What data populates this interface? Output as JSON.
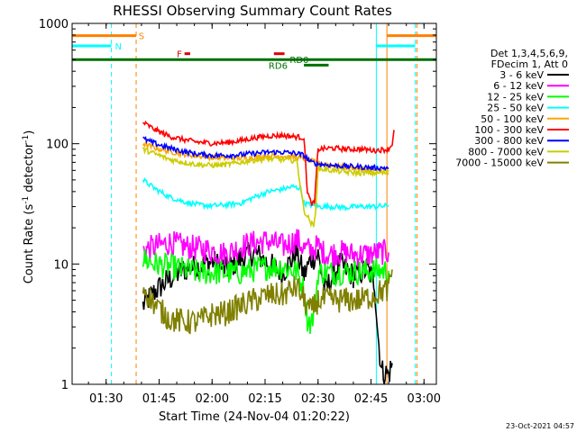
{
  "chart_data": {
    "type": "line",
    "title": "RHESSI Observing Summary Count Rates",
    "xlabel": "Start Time (24-Nov-04 01:20:22)",
    "ylabel": "Count Rate (s",
    "ylabel_sup": "-1",
    "ylabel_tail": " detector",
    "ylabel_tail_sup": "-1",
    "ylabel_end": ")",
    "yscale": "log",
    "ylim": [
      1,
      1000
    ],
    "xlim_minutes": [
      20.37,
      123.5
    ],
    "x_ticks": [
      {
        "label": "01:30",
        "minute": 30
      },
      {
        "label": "01:45",
        "minute": 45
      },
      {
        "label": "02:00",
        "minute": 60
      },
      {
        "label": "02:15",
        "minute": 75
      },
      {
        "label": "02:30",
        "minute": 90
      },
      {
        "label": "02:45",
        "minute": 105
      },
      {
        "label": "03:00",
        "minute": 120
      }
    ],
    "y_ticks": [
      {
        "label": "1",
        "value": 1
      },
      {
        "label": "10",
        "value": 10
      },
      {
        "label": "100",
        "value": 100
      },
      {
        "label": "1000",
        "value": 1000
      }
    ],
    "legend_header": [
      "Det 1,3,4,5,6,9,",
      "FDecim 1, Att 0"
    ],
    "series": [
      {
        "name": "3 - 6 keV",
        "color": "#000000",
        "segments": [
          [
            [
              40.4,
              4.5
            ],
            [
              44,
              6
            ],
            [
              48,
              7.5
            ],
            [
              52,
              9
            ],
            [
              56,
              9.5
            ],
            [
              60,
              10.5
            ],
            [
              64,
              9
            ],
            [
              68,
              11
            ],
            [
              72,
              12.5
            ],
            [
              76,
              10
            ],
            [
              80,
              8.5
            ],
            [
              84,
              12.5
            ],
            [
              86,
              8
            ],
            [
              88,
              11
            ],
            [
              90,
              12
            ],
            [
              92,
              6
            ],
            [
              96,
              10
            ],
            [
              100,
              8
            ],
            [
              104,
              9
            ],
            [
              106,
              7
            ],
            [
              107,
              2.5
            ],
            [
              108,
              1.3
            ],
            [
              110,
              1.2
            ],
            [
              111,
              1.5
            ]
          ]
        ]
      },
      {
        "name": "6 - 12 keV",
        "color": "#ff00ff",
        "segments": [
          [
            [
              40.4,
              13
            ],
            [
              44,
              14
            ],
            [
              48,
              15
            ],
            [
              52,
              14
            ],
            [
              56,
              13.5
            ],
            [
              60,
              13
            ],
            [
              64,
              12
            ],
            [
              68,
              14
            ],
            [
              72,
              15
            ],
            [
              76,
              15.5
            ],
            [
              80,
              14
            ],
            [
              84,
              16
            ],
            [
              86,
              13.5
            ],
            [
              88,
              13
            ],
            [
              90,
              14
            ],
            [
              92,
              12
            ],
            [
              96,
              12.5
            ],
            [
              100,
              12
            ],
            [
              104,
              12
            ],
            [
              108,
              12.5
            ],
            [
              110,
              12.5
            ]
          ]
        ]
      },
      {
        "name": "12 - 25 keV",
        "color": "#00ff00",
        "segments": [
          [
            [
              40.4,
              11
            ],
            [
              44,
              10
            ],
            [
              48,
              9.5
            ],
            [
              52,
              9
            ],
            [
              56,
              8.5
            ],
            [
              60,
              8.5
            ],
            [
              64,
              8.5
            ],
            [
              68,
              8.5
            ],
            [
              72,
              9
            ],
            [
              76,
              9.5
            ],
            [
              80,
              9.5
            ],
            [
              84,
              8.7
            ],
            [
              86,
              6
            ],
            [
              87,
              3.5
            ],
            [
              88,
              3.2
            ],
            [
              89,
              4
            ],
            [
              90,
              8.5
            ],
            [
              94,
              8.5
            ],
            [
              98,
              8.6
            ],
            [
              102,
              8.6
            ],
            [
              106,
              8.8
            ],
            [
              110,
              8.8
            ]
          ]
        ]
      },
      {
        "name": "25 - 50 keV",
        "color": "#00ffff",
        "segments": [
          [
            [
              40.4,
              50
            ],
            [
              44,
              42
            ],
            [
              48,
              36
            ],
            [
              52,
              33
            ],
            [
              56,
              31
            ],
            [
              60,
              30.5
            ],
            [
              64,
              31
            ],
            [
              68,
              32
            ],
            [
              72,
              36
            ],
            [
              76,
              40
            ],
            [
              80,
              42
            ],
            [
              83,
              44
            ],
            [
              84,
              43
            ],
            [
              85,
              43
            ],
            [
              86,
              32
            ],
            [
              90,
              30
            ],
            [
              94,
              30
            ],
            [
              98,
              29.5
            ],
            [
              102,
              30
            ],
            [
              106,
              30
            ],
            [
              110,
              30.5
            ]
          ]
        ]
      },
      {
        "name": "50 - 100 keV",
        "color": "#ffa500",
        "segments": [
          [
            [
              40.4,
              100
            ],
            [
              44,
              92
            ],
            [
              48,
              86
            ],
            [
              52,
              82
            ],
            [
              56,
              79
            ],
            [
              60,
              77
            ],
            [
              64,
              76
            ],
            [
              68,
              76
            ],
            [
              72,
              77
            ],
            [
              76,
              79
            ],
            [
              80,
              79
            ],
            [
              84,
              77
            ],
            [
              86,
              75
            ],
            [
              90,
              69
            ],
            [
              94,
              66
            ],
            [
              98,
              64
            ],
            [
              102,
              62
            ],
            [
              106,
              60
            ],
            [
              110,
              59
            ]
          ]
        ]
      },
      {
        "name": "100 - 300 keV",
        "color": "#ff0000",
        "segments": [
          [
            [
              40.4,
              150
            ],
            [
              44,
              130
            ],
            [
              48,
              115
            ],
            [
              52,
              108
            ],
            [
              56,
              103
            ],
            [
              60,
              101
            ],
            [
              64,
              102
            ],
            [
              68,
              106
            ],
            [
              72,
              112
            ],
            [
              76,
              116
            ],
            [
              80,
              117
            ],
            [
              84,
              114
            ],
            [
              86,
              112
            ],
            [
              87,
              40
            ],
            [
              88,
              32
            ],
            [
              89,
              32
            ],
            [
              90,
              90
            ],
            [
              94,
              92
            ],
            [
              98,
              90
            ],
            [
              102,
              90
            ],
            [
              106,
              88
            ],
            [
              110,
              90
            ],
            [
              111,
              100
            ],
            [
              111.5,
              130
            ]
          ]
        ]
      },
      {
        "name": "300 - 800 keV",
        "color": "#0000ff",
        "segments": [
          [
            [
              40.4,
              110
            ],
            [
              44,
              100
            ],
            [
              48,
              92
            ],
            [
              52,
              86
            ],
            [
              56,
              82
            ],
            [
              60,
              80
            ],
            [
              64,
              80
            ],
            [
              68,
              81
            ],
            [
              72,
              83
            ],
            [
              76,
              85
            ],
            [
              80,
              85
            ],
            [
              84,
              83
            ],
            [
              86,
              80
            ],
            [
              88,
              70
            ],
            [
              90,
              68
            ],
            [
              94,
              66
            ],
            [
              98,
              65
            ],
            [
              102,
              64
            ],
            [
              106,
              63
            ],
            [
              110,
              63
            ]
          ]
        ]
      },
      {
        "name": "800 - 7000 keV",
        "color": "#cccc00",
        "segments": [
          [
            [
              40.4,
              90
            ],
            [
              44,
              82
            ],
            [
              48,
              74
            ],
            [
              52,
              70
            ],
            [
              56,
              67
            ],
            [
              60,
              66
            ],
            [
              64,
              67
            ],
            [
              68,
              70
            ],
            [
              72,
              73
            ],
            [
              76,
              75
            ],
            [
              80,
              74
            ],
            [
              84,
              72
            ],
            [
              86,
              28
            ],
            [
              88,
              22
            ],
            [
              89,
              20
            ],
            [
              90,
              62
            ],
            [
              94,
              60
            ],
            [
              98,
              58
            ],
            [
              102,
              57
            ],
            [
              106,
              57
            ],
            [
              110,
              57
            ]
          ]
        ]
      },
      {
        "name": "7000 - 15000 keV",
        "color": "#808000",
        "segments": [
          [
            [
              40.4,
              6.5
            ],
            [
              44,
              4.5
            ],
            [
              48,
              3.5
            ],
            [
              52,
              3.3
            ],
            [
              56,
              3.3
            ],
            [
              60,
              3.8
            ],
            [
              64,
              3.9
            ],
            [
              68,
              4.5
            ],
            [
              72,
              5
            ],
            [
              76,
              5.5
            ],
            [
              80,
              5.5
            ],
            [
              84,
              6.5
            ],
            [
              86,
              5
            ],
            [
              88,
              4
            ],
            [
              90,
              5
            ],
            [
              94,
              5
            ],
            [
              98,
              5
            ],
            [
              102,
              5
            ],
            [
              106,
              5.5
            ],
            [
              108,
              6
            ],
            [
              110,
              6
            ],
            [
              111,
              9
            ]
          ]
        ]
      }
    ],
    "flags": [
      {
        "label": "S",
        "color": "#ff8000",
        "y": 790,
        "segments": [
          [
            20.37,
            38.5
          ],
          [
            109.5,
            123.5
          ]
        ],
        "label_minute": 39.2
      },
      {
        "label": "N",
        "color": "#00ffff",
        "y": 650,
        "segments": [
          [
            20.37,
            31.5
          ],
          [
            106.5,
            117.5
          ]
        ],
        "label_minute": 32.5
      },
      {
        "label": "F",
        "color": "#dd0000",
        "y": 560,
        "segments": [
          [
            52.2,
            53.8
          ],
          [
            77.5,
            80.5
          ]
        ],
        "label_minute": 50.0
      },
      {
        "label": "RD0",
        "color": "#007000",
        "y": 500,
        "segments": [
          [
            20.37,
            123.5
          ]
        ],
        "label_minute": 82.0
      },
      {
        "label": "RD6",
        "color": "#007000",
        "y": 450,
        "segments": [
          [
            86.0,
            93.0
          ]
        ],
        "label_minute": 76.0
      }
    ],
    "vlines": [
      {
        "minute": 31.5,
        "color": "#00ffff",
        "dashed": true
      },
      {
        "minute": 38.5,
        "color": "#ff8000",
        "dashed": true
      },
      {
        "minute": 106.5,
        "color": "#00ffff",
        "dashed": false
      },
      {
        "minute": 109.5,
        "color": "#ff8000",
        "dashed": false
      },
      {
        "minute": 117.5,
        "color": "#00ffff",
        "dashed": true
      },
      {
        "minute": 118.0,
        "color": "#ff8000",
        "dashed": true
      }
    ],
    "footer_date": "23-Oct-2021 04:57"
  }
}
